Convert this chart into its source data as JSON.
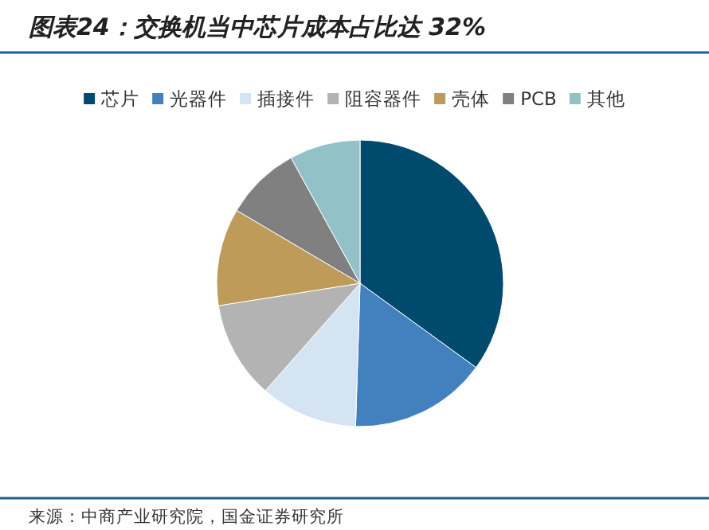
{
  "chart_data": {
    "type": "pie",
    "title": "图表24：交换机当中芯片成本占比达 32%",
    "categories": [
      "芯片",
      "光器件",
      "插接件",
      "阻容器件",
      "壳体",
      "PCB",
      "其他"
    ],
    "values": [
      35,
      15.5,
      11,
      11,
      11,
      8.5,
      8
    ],
    "colors": [
      "#004a6e",
      "#4380be",
      "#d5e4f3",
      "#b3b3b3",
      "#bf9b5a",
      "#808080",
      "#92c1c7"
    ],
    "legend": "top",
    "annotations": [
      "来源：中商产业研究院，国金证券研究所"
    ]
  }
}
